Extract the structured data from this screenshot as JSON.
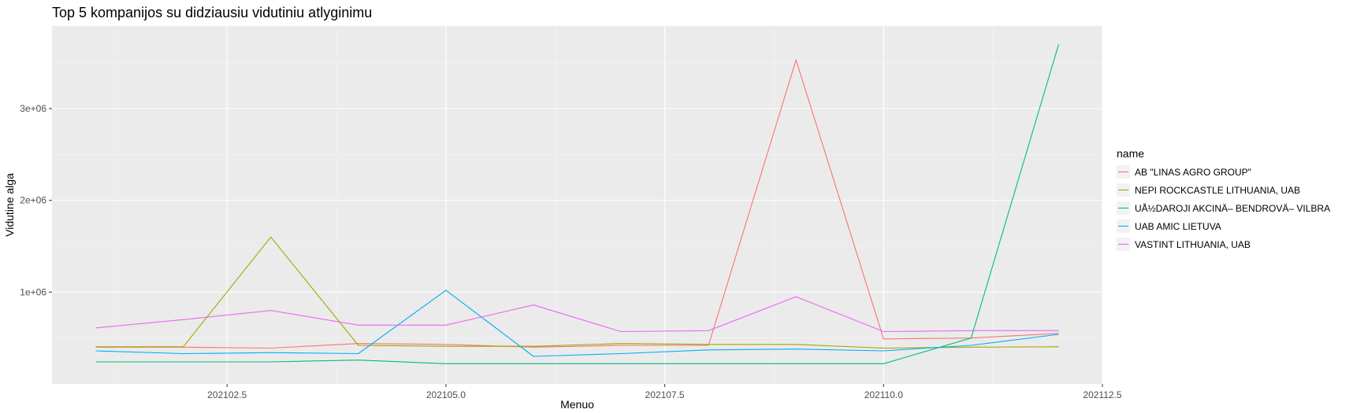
{
  "chart_data": {
    "type": "line",
    "title": "Top 5 kompanijos su didziausiu vidutiniu atlyginimu",
    "xlabel": "Menuo",
    "ylabel": "Vidutine alga",
    "x": [
      202101,
      202102,
      202103,
      202104,
      202105,
      202106,
      202107,
      202108,
      202109,
      202110,
      202111,
      202112
    ],
    "xlim": [
      202100.5,
      202112.5
    ],
    "ylim": [
      0,
      3900000
    ],
    "xticks": [
      202102.5,
      202105.0,
      202107.5,
      202110.0,
      202112.5
    ],
    "xtick_labels": [
      "202102.5",
      "202105.0",
      "202107.5",
      "202110.0",
      "202112.5"
    ],
    "yticks": [
      1000000,
      2000000,
      3000000
    ],
    "ytick_labels": [
      "1e+06",
      "2e+06",
      "3e+06"
    ],
    "grid": true,
    "legend": {
      "title": "name",
      "position": "right"
    },
    "series": [
      {
        "name": "AB \"LINAS AGRO GROUP\"",
        "color": "#F8766D",
        "values": [
          400000,
          400000,
          390000,
          440000,
          430000,
          400000,
          420000,
          420000,
          3530000,
          490000,
          500000,
          550000
        ]
      },
      {
        "name": "NEPI ROCKCASTLE LITHUANIA, UAB",
        "color": "#A3A500",
        "values": [
          405000,
          405000,
          1600000,
          420000,
          410000,
          410000,
          440000,
          430000,
          430000,
          390000,
          400000,
          405000
        ]
      },
      {
        "name": "UÅ½DAROJI AKCINÄ– BENDROVÄ– VILBRA",
        "color": "#00BF7D",
        "values": [
          240000,
          240000,
          240000,
          260000,
          220000,
          220000,
          220000,
          220000,
          220000,
          220000,
          500000,
          3700000
        ]
      },
      {
        "name": "UAB AMIC LIETUVA",
        "color": "#00B0F6",
        "values": [
          360000,
          330000,
          340000,
          330000,
          1020000,
          300000,
          330000,
          370000,
          380000,
          360000,
          420000,
          540000
        ]
      },
      {
        "name": "VASTINT LITHUANIA, UAB",
        "color": "#E76BF3",
        "values": [
          610000,
          700000,
          800000,
          640000,
          640000,
          860000,
          570000,
          580000,
          950000,
          570000,
          580000,
          580000
        ]
      }
    ]
  }
}
